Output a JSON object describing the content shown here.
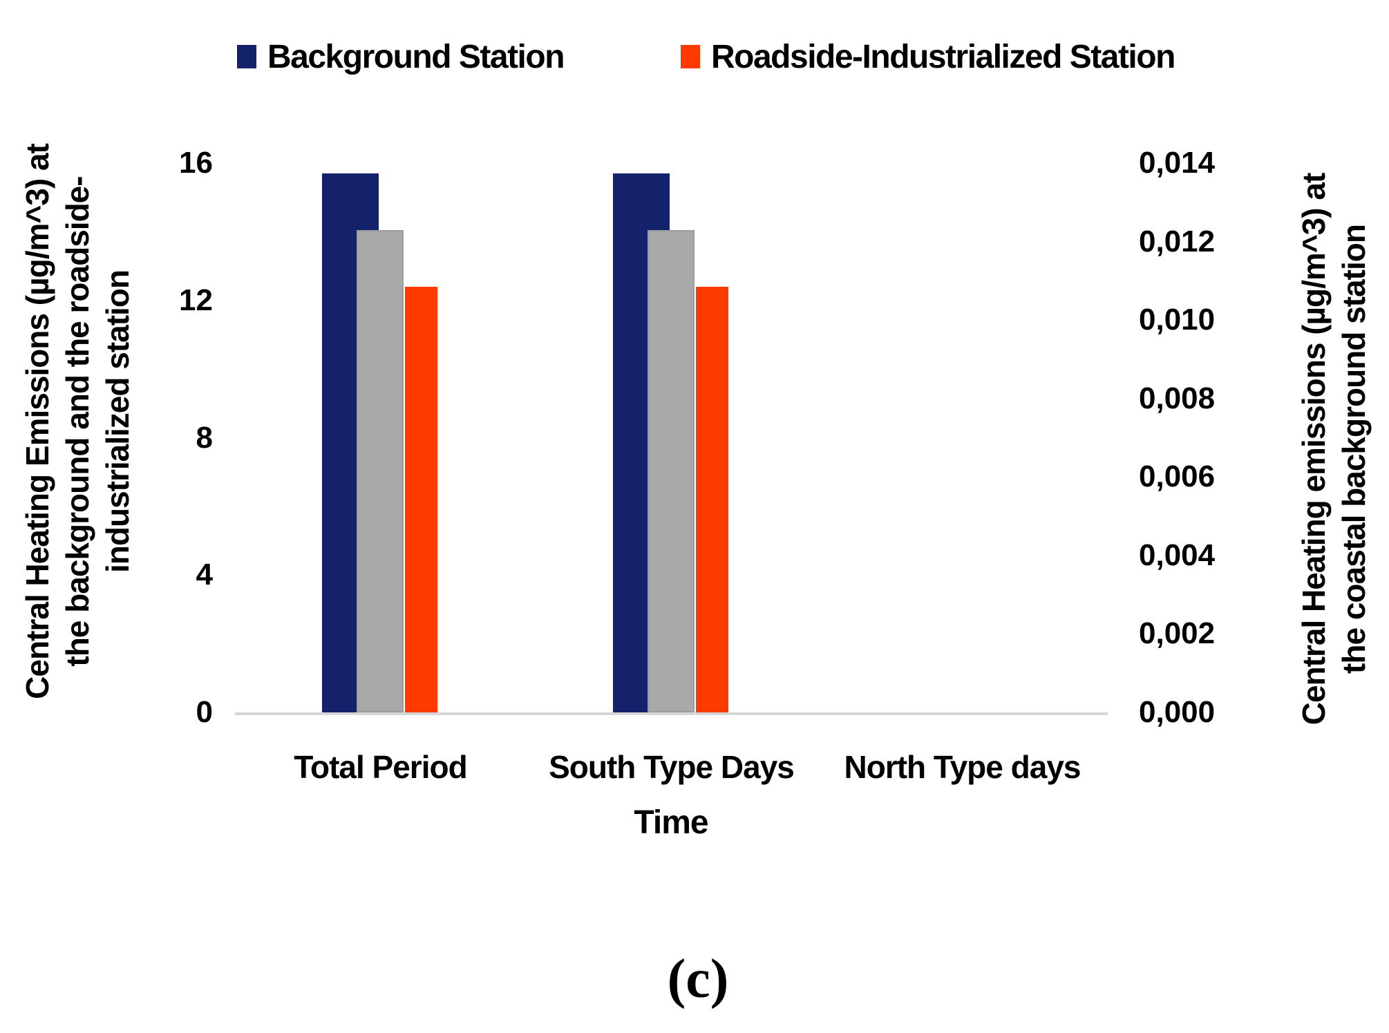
{
  "legend": {
    "items": [
      {
        "label": "Background Station",
        "color": "#14216B"
      },
      {
        "label": "Roadside-Industrialized Station",
        "color": "#FE3A00"
      }
    ]
  },
  "left_axis": {
    "title_lines": [
      "Central Heating Emissions (µg/m^3) at",
      "the background and the roadside-",
      "industrialized station"
    ],
    "ticks": [
      "16",
      "12",
      "8",
      "4",
      "0"
    ]
  },
  "right_axis": {
    "title_lines": [
      "Central Heating emissions (µg/m^3) at",
      "the coastal background station"
    ],
    "ticks": [
      "0,014",
      "0,012",
      "0,010",
      "0,008",
      "0,006",
      "0,004",
      "0,002",
      "0,000"
    ]
  },
  "x_axis": {
    "title": "Time",
    "categories": [
      "Total Period",
      "South Type Days",
      "North Type days"
    ]
  },
  "caption": "(c)",
  "chart_data": {
    "type": "bar",
    "title": "",
    "categories": [
      "Total Period",
      "South Type Days",
      "North Type days"
    ],
    "series": [
      {
        "name": "Background Station",
        "axis": "left",
        "color": "#14216B",
        "values": [
          15.7,
          15.7,
          0
        ]
      },
      {
        "name": "unlabeled gray series (coastal background station, right axis)",
        "axis": "right",
        "color": "#A9A9A9",
        "values": [
          0.0123,
          0.0123,
          0
        ]
      },
      {
        "name": "Roadside-Industrialized Station",
        "axis": "left",
        "color": "#FE3A00",
        "values": [
          12.4,
          12.4,
          0
        ]
      }
    ],
    "xlabel": "Time",
    "ylabel_left": "Central Heating Emissions (µg/m^3) at the background and the roadside-industrialized station",
    "ylabel_right": "Central Heating emissions (µg/m^3) at the coastal background station",
    "ylim_left": [
      0,
      16
    ],
    "ylim_right": [
      0,
      0.014
    ],
    "grid": false,
    "legend_position": "top"
  }
}
